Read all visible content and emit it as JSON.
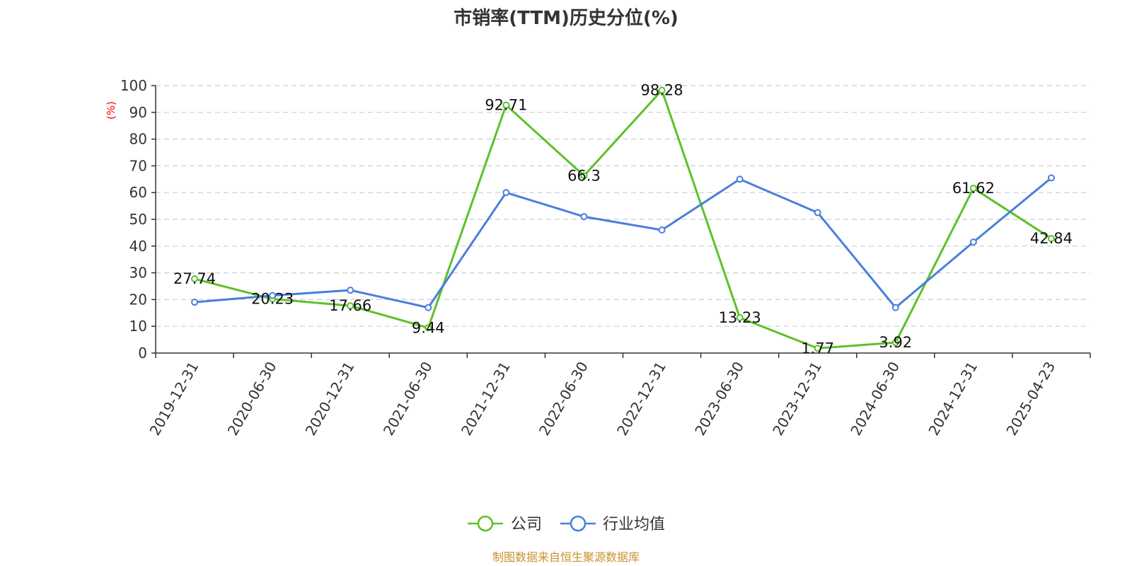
{
  "chart_data": {
    "type": "line",
    "title": "市销率(TTM)历史分位(%)",
    "ylabel": "(%)",
    "xlabel": "",
    "ylim": [
      0,
      100
    ],
    "yticks": [
      0,
      10,
      20,
      30,
      40,
      50,
      60,
      70,
      80,
      90,
      100
    ],
    "grid": true,
    "legend_position": "bottom-center",
    "categories": [
      "2019-12-31",
      "2020-06-30",
      "2020-12-31",
      "2021-06-30",
      "2021-12-31",
      "2022-06-30",
      "2022-12-31",
      "2023-06-30",
      "2023-12-31",
      "2024-06-30",
      "2024-12-31",
      "2025-04-23"
    ],
    "series": [
      {
        "name": "公司",
        "color": "#5cc12a",
        "values": [
          27.74,
          20.23,
          17.66,
          9.44,
          92.71,
          66.3,
          98.28,
          13.23,
          1.77,
          3.92,
          61.62,
          42.84
        ],
        "labels": [
          "27.74",
          "20.23",
          "17.66",
          "9.44",
          "92.71",
          "66.3",
          "98.28",
          "13.23",
          "1.77",
          "3.92",
          "61.62",
          "42.84"
        ]
      },
      {
        "name": "行业均值",
        "color": "#4a7fdc",
        "values": [
          19,
          21.5,
          23.5,
          17,
          60,
          51,
          46,
          65,
          52.5,
          17,
          41.5,
          65.5
        ]
      }
    ]
  },
  "source_text": "制图数据来自恒生聚源数据库"
}
